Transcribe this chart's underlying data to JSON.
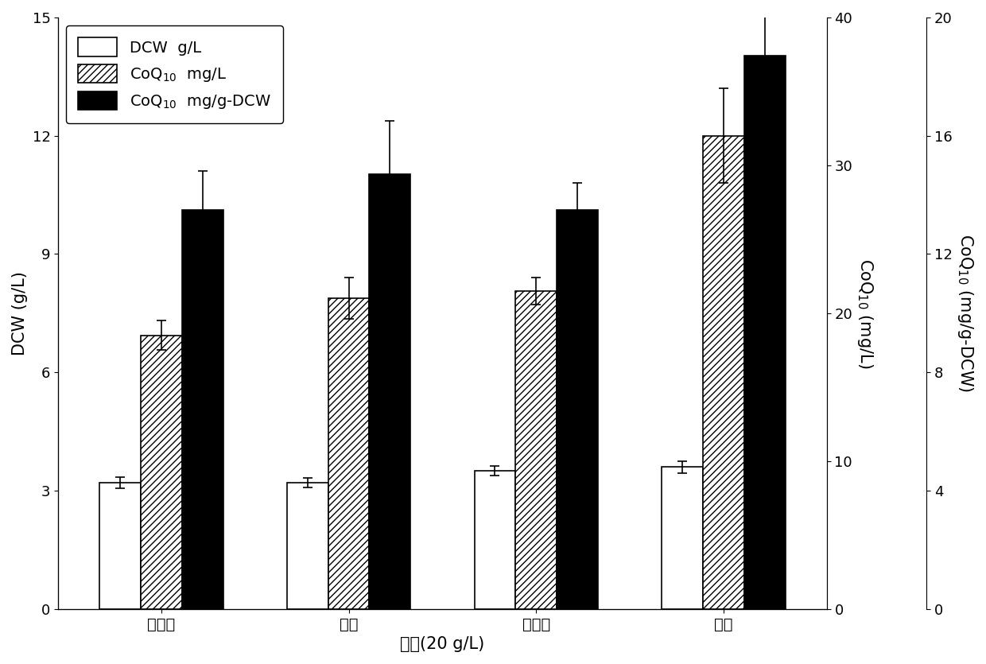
{
  "categories": [
    "葡萄糖",
    "蕎糖",
    "麦芽糖",
    "乳糖"
  ],
  "xlabel": "碳源(20 g/L)",
  "ylabel_left": "DCW (g/L)",
  "ylabel_mid": "CoQ$_{10}$ (mg/L)",
  "ylabel_right": "CoQ$_{10}$ (mg/g-DCW)",
  "ylim_left": [
    0,
    15
  ],
  "ylim_mid": [
    0,
    40
  ],
  "ylim_right": [
    0,
    20
  ],
  "yticks_left": [
    0,
    3,
    6,
    9,
    12,
    15
  ],
  "yticks_mid": [
    0,
    10,
    20,
    30,
    40
  ],
  "yticks_right": [
    0,
    4,
    8,
    12,
    16,
    20
  ],
  "dcw_values": [
    3.2,
    3.2,
    3.5,
    3.6
  ],
  "dcw_errors": [
    0.15,
    0.12,
    0.12,
    0.15
  ],
  "coq10_mgl_values": [
    18.5,
    21.0,
    21.5,
    32.0
  ],
  "coq10_mgl_errors": [
    1.0,
    1.4,
    0.9,
    3.2
  ],
  "coq10_mgdcw_values": [
    13.5,
    14.7,
    13.5,
    18.7
  ],
  "coq10_mgdcw_errors": [
    1.3,
    1.8,
    0.9,
    1.8
  ],
  "legend_labels": [
    "DCW  g/L",
    "CoQ$_{10}$  mg/L",
    "CoQ$_{10}$  mg/g-DCW"
  ],
  "bar_width": 0.22,
  "background_color": "#ffffff",
  "font_size": 14,
  "tick_font_size": 13,
  "label_font_size": 15
}
